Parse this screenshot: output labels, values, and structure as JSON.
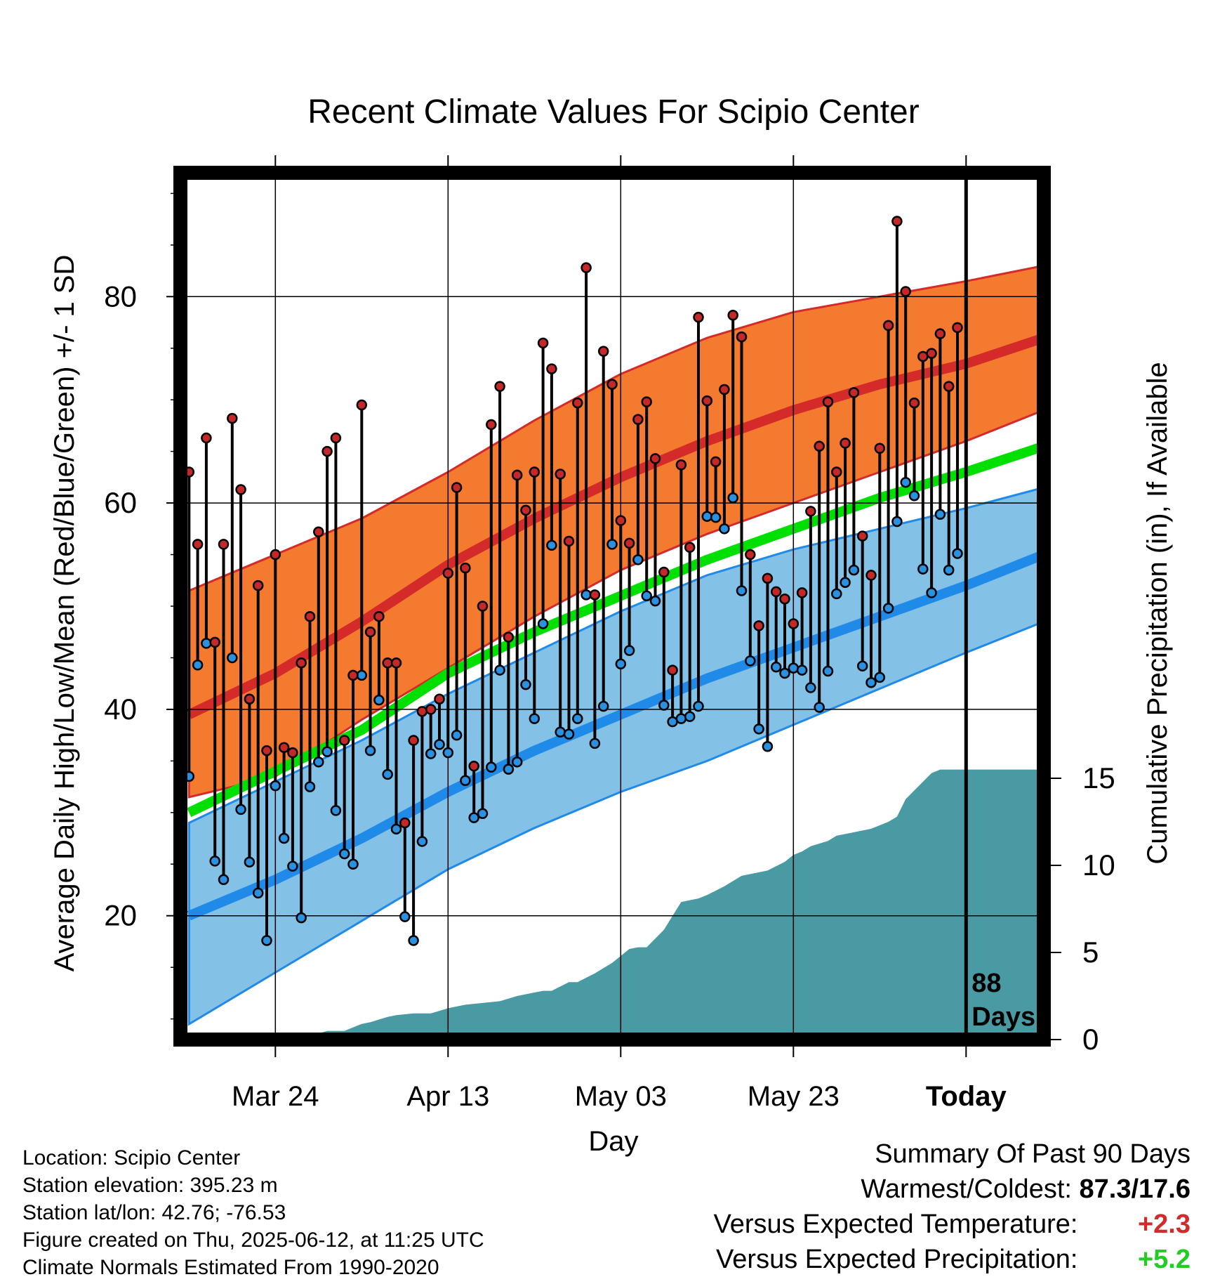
{
  "colors": {
    "high_band": "#f47a30",
    "high_mean": "#d42a2a",
    "low_band": "#84c1e6",
    "low_mean": "#1f8ae8",
    "freeze_line": "#00e000",
    "precip": "#4a9aa4",
    "high_dot": "#c42828",
    "low_dot": "#2a90e0",
    "positive_temp": "#d42a2a",
    "positive_precip": "#22cc22"
  },
  "chart_data": {
    "type": "line",
    "title": "Recent Climate Values For Scipio Center",
    "xlabel": "Day",
    "ylabel": "Average Daily High/Low/Mean (Red/Blue/Green) +/- 1 SD",
    "y2label": "Cumulative Precipitation (in), If Available",
    "x_unit": "days relative to today",
    "xlim": [
      -91,
      9
    ],
    "ylim": [
      8,
      92
    ],
    "y_ticks": [
      20,
      40,
      60,
      80
    ],
    "y2_ticks": [
      0,
      5,
      10,
      15
    ],
    "x_ticks": [
      {
        "day": -80,
        "label": "Mar 24"
      },
      {
        "day": -60,
        "label": "Apr 13"
      },
      {
        "day": -40,
        "label": "May 03"
      },
      {
        "day": -20,
        "label": "May 23"
      },
      {
        "day": 0,
        "label": "Today"
      }
    ],
    "grid": true,
    "today_marker_label": [
      "88",
      "Days"
    ],
    "normals": {
      "x": [
        -90,
        -80,
        -70,
        -60,
        -50,
        -40,
        -30,
        -20,
        -10,
        0,
        9
      ],
      "high_mean": [
        39.5,
        43.5,
        48.5,
        54,
        58.5,
        62.5,
        66,
        69,
        71.5,
        73.5,
        76
      ],
      "high_upper": [
        51.5,
        55,
        58.5,
        63,
        68,
        72.5,
        76,
        78.5,
        80,
        81.5,
        83
      ],
      "high_lower": [
        31.5,
        33.5,
        39,
        44,
        49,
        53.5,
        57,
        60,
        63,
        66,
        69
      ],
      "low_mean": [
        20,
        23.5,
        27.5,
        32,
        36,
        39.5,
        43,
        46,
        49,
        52,
        55
      ],
      "low_upper": [
        29,
        33,
        37,
        41.5,
        45.5,
        49.5,
        53,
        55.5,
        57.5,
        59.5,
        61.5
      ],
      "low_lower": [
        9.5,
        14.5,
        19.5,
        24.5,
        28.5,
        32,
        35,
        38.5,
        42,
        45.5,
        48.5
      ],
      "mean_line": [
        30,
        34,
        38,
        43.5,
        47.5,
        51,
        54.5,
        57.5,
        60.5,
        63,
        65.5
      ]
    },
    "series": [
      {
        "name": "High",
        "x": [
          -90,
          -89,
          -88,
          -87,
          -86,
          -85,
          -84,
          -83,
          -82,
          -81,
          -80,
          -79,
          -78,
          -77,
          -76,
          -75,
          -74,
          -73,
          -72,
          -71,
          -70,
          -69,
          -68,
          -67,
          -66,
          -65,
          -64,
          -63,
          -62,
          -61,
          -60,
          -59,
          -58,
          -57,
          -56,
          -55,
          -54,
          -53,
          -52,
          -51,
          -50,
          -49,
          -48,
          -47,
          -46,
          -45,
          -44,
          -43,
          -42,
          -41,
          -40,
          -39,
          -38,
          -37,
          -36,
          -35,
          -34,
          -33,
          -32,
          -31,
          -30,
          -29,
          -28,
          -27,
          -26,
          -25,
          -24,
          -23,
          -22,
          -21,
          -20,
          -19,
          -18,
          -17,
          -16,
          -15,
          -14,
          -13,
          -12,
          -11,
          -10,
          -9,
          -8,
          -7,
          -6,
          -5,
          -4,
          -3,
          -2,
          -1
        ],
        "values": [
          63,
          56,
          66.3,
          46.5,
          56,
          68.2,
          61.3,
          41,
          52,
          36,
          55,
          36.3,
          35.8,
          44.5,
          49,
          57.2,
          65,
          66.3,
          37,
          43.3,
          69.5,
          47.5,
          49,
          44.5,
          44.5,
          29,
          37,
          39.8,
          40,
          41,
          53.2,
          61.5,
          53.7,
          34.5,
          50,
          67.6,
          71.3,
          47,
          62.7,
          59.3,
          63,
          75.5,
          73,
          62.8,
          56.3,
          69.7,
          82.8,
          51.1,
          74.7,
          71.5,
          58.3,
          56.1,
          68.1,
          69.8,
          64.3,
          53.3,
          43.8,
          63.7,
          55.7,
          78,
          69.9,
          64,
          71,
          78.2,
          76.1,
          55,
          48.1,
          52.7,
          51.4,
          50.7,
          48.3,
          51.3,
          59.2,
          65.5,
          69.8,
          63,
          65.8,
          70.7,
          56.8,
          53,
          65.3,
          77.2,
          87.3,
          80.5,
          69.7,
          74.2,
          74.5,
          76.4,
          71.3,
          77
        ]
      },
      {
        "name": "Low",
        "x": [
          -90,
          -89,
          -88,
          -87,
          -86,
          -85,
          -84,
          -83,
          -82,
          -81,
          -80,
          -79,
          -78,
          -77,
          -76,
          -75,
          -74,
          -73,
          -72,
          -71,
          -70,
          -69,
          -68,
          -67,
          -66,
          -65,
          -64,
          -63,
          -62,
          -61,
          -60,
          -59,
          -58,
          -57,
          -56,
          -55,
          -54,
          -53,
          -52,
          -51,
          -50,
          -49,
          -48,
          -47,
          -46,
          -45,
          -44,
          -43,
          -42,
          -41,
          -40,
          -39,
          -38,
          -37,
          -36,
          -35,
          -34,
          -33,
          -32,
          -31,
          -30,
          -29,
          -28,
          -27,
          -26,
          -25,
          -24,
          -23,
          -22,
          -21,
          -20,
          -19,
          -18,
          -17,
          -16,
          -15,
          -14,
          -13,
          -12,
          -11,
          -10,
          -9,
          -8,
          -7,
          -6,
          -5,
          -4,
          -3,
          -2,
          -1
        ],
        "values": [
          33.5,
          44.3,
          46.4,
          25.3,
          23.5,
          45,
          30.3,
          25.2,
          22.2,
          17.6,
          32.6,
          27.5,
          24.8,
          19.8,
          32.5,
          34.9,
          35.9,
          30.2,
          26,
          25,
          43.3,
          36,
          40.9,
          33.7,
          28.4,
          19.9,
          17.6,
          27.2,
          35.7,
          36.6,
          35.8,
          37.5,
          33.1,
          29.5,
          29.9,
          34.4,
          43.8,
          34.2,
          34.9,
          42.4,
          39.1,
          48.3,
          55.9,
          37.8,
          37.6,
          39.1,
          51.1,
          36.7,
          40.3,
          56,
          44.4,
          45.7,
          54.5,
          51,
          50.5,
          40.4,
          38.8,
          39.1,
          39.3,
          40.3,
          58.7,
          58.6,
          57.5,
          60.5,
          51.5,
          44.7,
          38.1,
          36.4,
          44.1,
          43.5,
          44,
          43.8,
          42.1,
          40.2,
          43.7,
          51.2,
          52.3,
          53.5,
          44.2,
          42.6,
          43.1,
          49.8,
          58.2,
          62,
          60.7,
          53.6,
          51.3,
          58.9,
          53.5,
          55.1
        ]
      },
      {
        "name": "Cumulative Precipitation",
        "x": [
          -90,
          -77,
          -76,
          -74,
          -72,
          -70,
          -69,
          -67,
          -66,
          -64,
          -62,
          -60,
          -58,
          -56,
          -54,
          -52,
          -50,
          -49,
          -48,
          -46,
          -45,
          -43,
          -41,
          -39,
          -38,
          -37,
          -36,
          -35,
          -33,
          -31,
          -30,
          -28,
          -26,
          -25,
          -23,
          -21,
          -20,
          -19,
          -18,
          -16,
          -15,
          -13,
          -11,
          -9,
          -8,
          -7,
          -5,
          -4,
          -3,
          0,
          9
        ],
        "values": [
          0,
          0,
          0.2,
          0.5,
          0.5,
          0.9,
          1,
          1.3,
          1.4,
          1.5,
          1.5,
          1.8,
          2,
          2.1,
          2.2,
          2.5,
          2.7,
          2.8,
          2.8,
          3.3,
          3.3,
          3.8,
          4.4,
          5.2,
          5.3,
          5.3,
          5.8,
          6.3,
          7.9,
          8.1,
          8.3,
          8.8,
          9.4,
          9.5,
          9.7,
          10.2,
          10.6,
          10.8,
          11.1,
          11.4,
          11.7,
          11.9,
          12.1,
          12.5,
          12.8,
          13.8,
          14.8,
          15.3,
          15.5,
          15.5,
          15.5
        ]
      }
    ]
  },
  "footer_left": {
    "location": "Location: Scipio Center",
    "elevation": "Station elevation: 395.23 m",
    "latlon": "Station lat/lon: 42.76; -76.53",
    "created": "Figure created on Thu, 2025-06-12, at 11:25 UTC",
    "normals": "Climate Normals Estimated From 1990-2020"
  },
  "footer_right": {
    "header": "Summary Of Past 90 Days",
    "warmest_label": "Warmest/Coldest:",
    "warmest_value": "87.3/17.6",
    "temp_label": "Versus Expected Temperature:",
    "temp_value": "+2.3",
    "precip_label": "Versus Expected Precipitation:",
    "precip_value": "+5.2"
  }
}
